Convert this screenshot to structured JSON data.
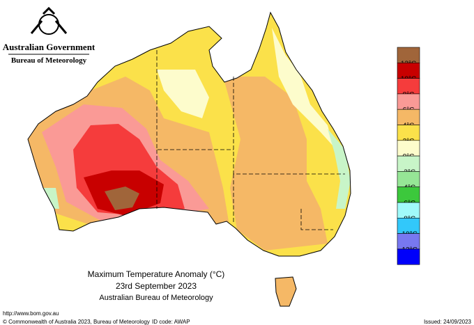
{
  "header": {
    "government": "Australian Government",
    "bureau": "Bureau of Meteorology"
  },
  "legend": {
    "items": [
      {
        "color": "#a0653a",
        "label": "12°C"
      },
      {
        "color": "#c80000",
        "label": "10°C"
      },
      {
        "color": "#f53c3c",
        "label": "8°C"
      },
      {
        "color": "#fa9a96",
        "label": "6°C"
      },
      {
        "color": "#f5b866",
        "label": "4°C"
      },
      {
        "color": "#fbe14a",
        "label": "2°C"
      },
      {
        "color": "#fdfccc",
        "label": "0°C"
      },
      {
        "color": "#c8f5c8",
        "label": "-2°C"
      },
      {
        "color": "#96e696",
        "label": "-4°C"
      },
      {
        "color": "#3cc83c",
        "label": "-6°C"
      },
      {
        "color": "#a0fafa",
        "label": "-8°C"
      },
      {
        "color": "#32c8fa",
        "label": "-10°C"
      },
      {
        "color": "#7878f0",
        "label": "-12°C"
      },
      {
        "color": "#0000fa"
      }
    ]
  },
  "caption": {
    "title": "Maximum Temperature Anomaly (°C)",
    "date": "23rd September 2023",
    "source": "Australian Bureau of Meteorology"
  },
  "footer": {
    "url": "http://www.bom.gov.au",
    "copyright": "© Commonwealth of Australia 2023, Bureau of Meteorology",
    "id_code": "ID code: AWAP",
    "issued": "Issued: 24/09/2023"
  }
}
